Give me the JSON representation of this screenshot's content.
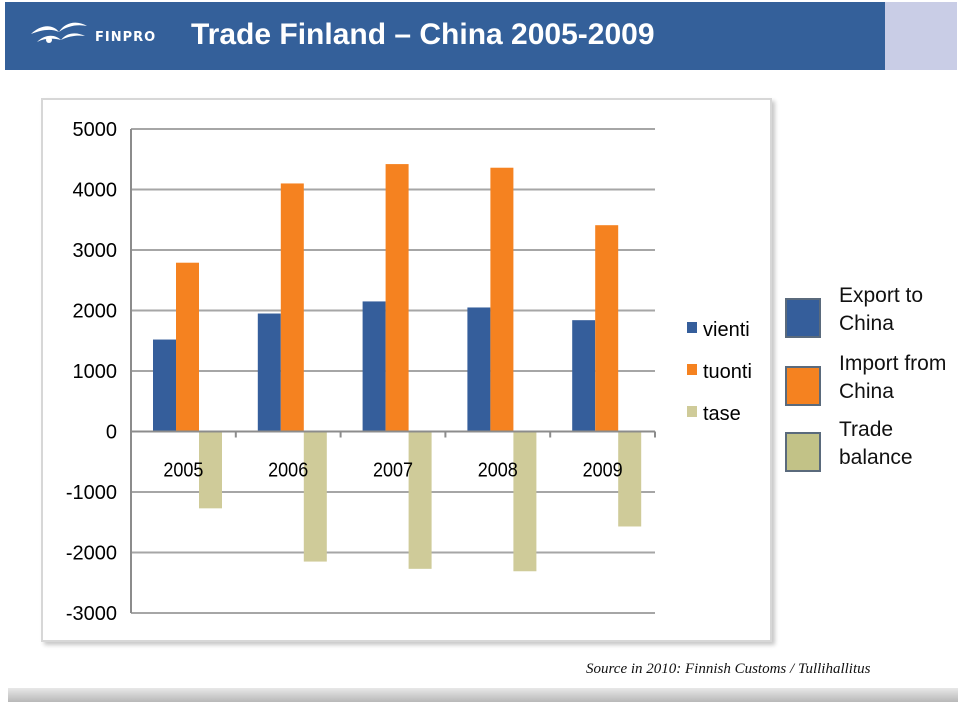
{
  "header": {
    "logo_text": "FINPRO",
    "title": "Trade Finland – China  2005-2009"
  },
  "chart_data": {
    "type": "bar",
    "categories": [
      "2005",
      "2006",
      "2007",
      "2008",
      "2009"
    ],
    "series": [
      {
        "name": "vienti",
        "values": [
          1520,
          1950,
          2150,
          2050,
          1840
        ],
        "color": "#355e9b"
      },
      {
        "name": "tuonti",
        "values": [
          2790,
          4100,
          4420,
          4360,
          3410
        ],
        "color": "#f58220"
      },
      {
        "name": "tase",
        "values": [
          -1270,
          -2150,
          -2270,
          -2310,
          -1570
        ],
        "color": "#cfcb99"
      }
    ],
    "yticks": [
      "5000",
      "4000",
      "3000",
      "2000",
      "1000",
      "0",
      "-1000",
      "-2000",
      "-3000"
    ],
    "ylim": [
      -3000,
      5000
    ],
    "grid": true,
    "legend": "right"
  },
  "side_legend": [
    {
      "label": "Export to China",
      "color": "#355e9b"
    },
    {
      "label": "Import from China",
      "color": "#f58220"
    },
    {
      "label": "Trade balance",
      "color": "#c2c287"
    }
  ],
  "source": "Source in 2010: Finnish Customs / Tullihallitus"
}
